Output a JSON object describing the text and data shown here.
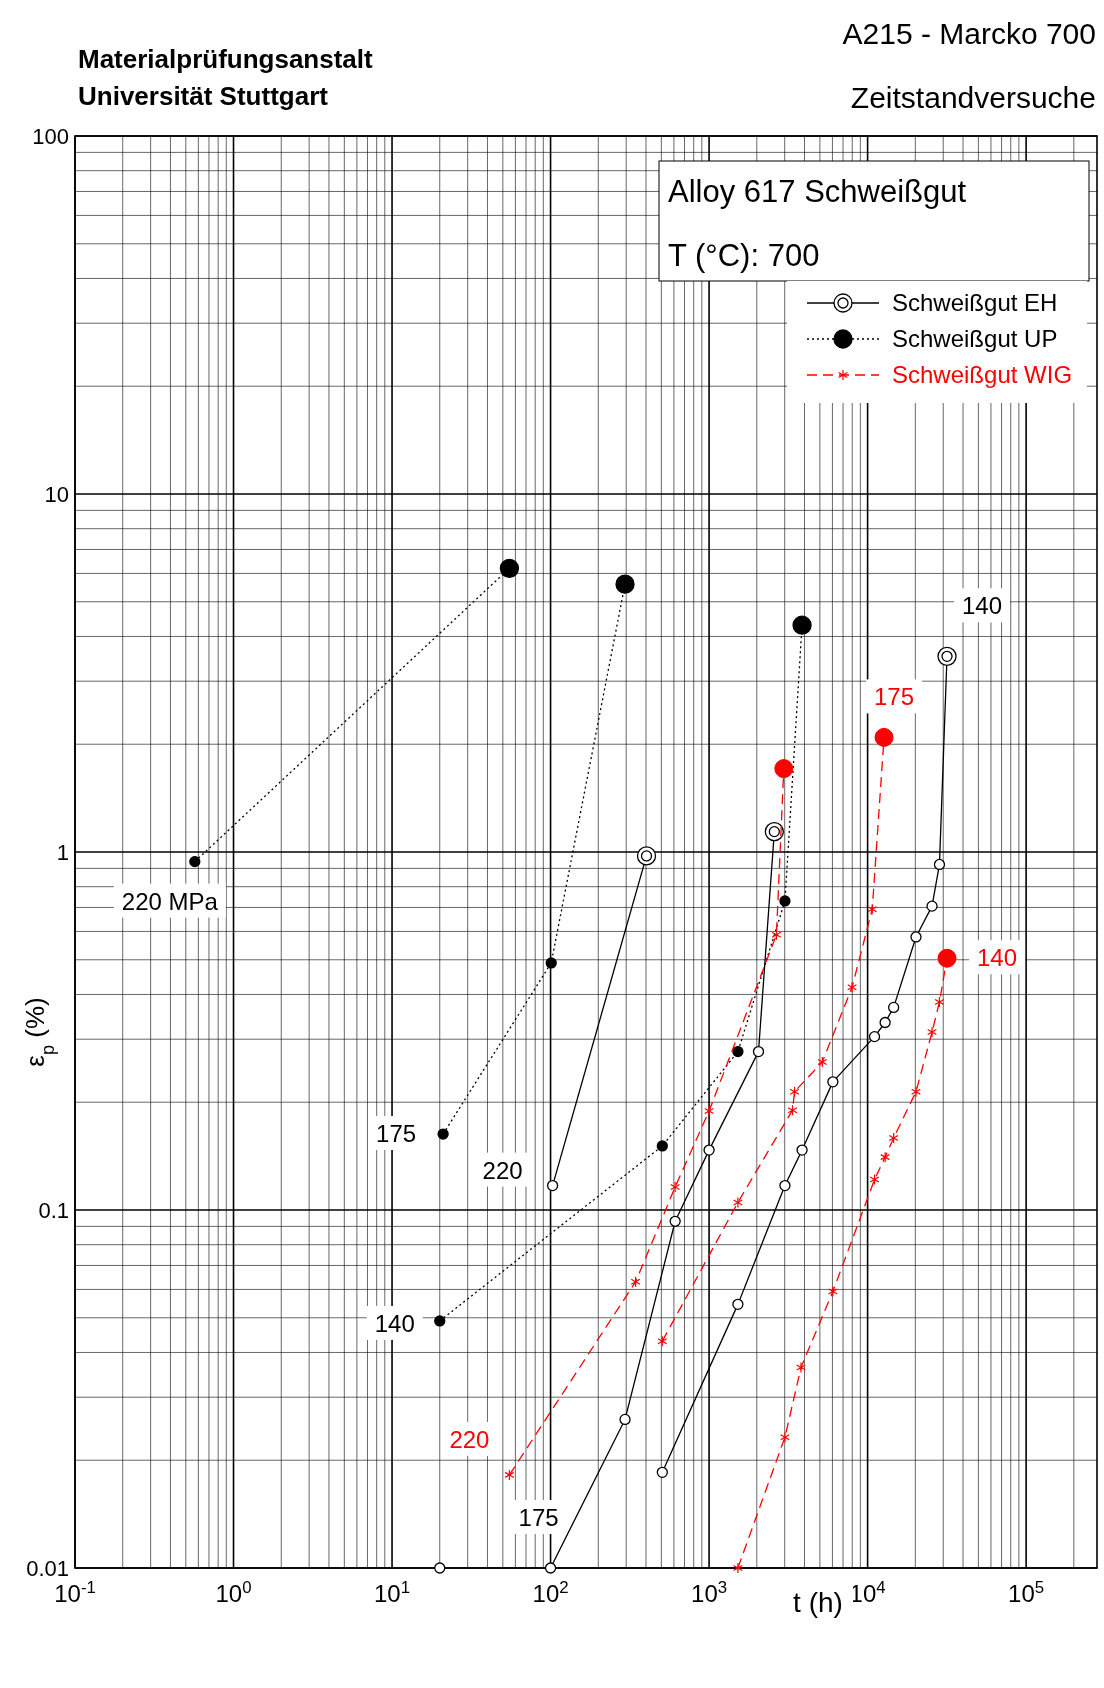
{
  "chart_data": {
    "type": "line",
    "title": "A215  -  Marcko 700",
    "subtitle": "Zeitstandversuche",
    "annotations": [
      "Materialprüfungsanstalt\nUniversität Stuttgart",
      "Alloy 617  Schweißgut",
      "T (°C):  700",
      "220 MPa",
      "175",
      "220",
      "140",
      "220",
      "175",
      "140",
      "175",
      "140"
    ],
    "xlabel": "t (h)",
    "ylabel": "ε$_{p}$ (%)",
    "xlim": [
      0.1,
      280000
    ],
    "ylim": [
      0.01,
      100
    ],
    "log": "xy",
    "grid": true,
    "legend": "top right",
    "xticks": [
      {
        "value": 0.1,
        "label": "10$^{-1}$"
      },
      {
        "value": 1,
        "label": "10$^{0}$"
      },
      {
        "value": 10,
        "label": "10$^{1}$"
      },
      {
        "value": 100,
        "label": "10$^{2}$"
      },
      {
        "value": 1000,
        "label": "10$^{3}$"
      },
      {
        "value": 10000,
        "label": "10$^{4}$"
      },
      {
        "value": 100000,
        "label": "10$^{5}$"
      }
    ],
    "yticks": [
      0.01,
      0.1,
      1,
      10,
      100
    ],
    "series": [
      {
        "name": "Schweißgut EH",
        "color": "#000000",
        "marker": "circle",
        "line_style": "solid",
        "x": [
          103,
          403
        ],
        "values": [
          0.117,
          0.975
        ]
      },
      {
        "color": "#000000",
        "marker": "circle",
        "line_style": "solid",
        "x": [
          100,
          295,
          611,
          1000,
          2050,
          2580
        ],
        "values": [
          0.01,
          0.026,
          0.093,
          0.147,
          0.277,
          1.14
        ]
      },
      {
        "color": "#000000",
        "marker": "circle",
        "line_style": "solid",
        "x": [
          20
        ],
        "values": [
          0.01
        ]
      },
      {
        "color": "#000000",
        "marker": "circle",
        "line_style": "solid",
        "x": [
          507,
          1520,
          3010,
          3860,
          6040,
          11060,
          12900,
          14600,
          20200,
          25500,
          28400,
          31700
        ],
        "values": [
          0.0185,
          0.0545,
          0.117,
          0.147,
          0.228,
          0.305,
          0.334,
          0.368,
          0.579,
          0.706,
          0.923,
          3.52
        ]
      },
      {
        "name": "Schweißgut UP",
        "color": "#000000",
        "marker": "circle",
        "line_style": "dotted",
        "x": [
          0.57,
          55
        ],
        "values": [
          0.94,
          6.2
        ]
      },
      {
        "color": "#000000",
        "marker": "circle",
        "line_style": "dotted",
        "x": [
          21,
          101,
          295
        ],
        "values": [
          0.163,
          0.49,
          5.6
        ]
      },
      {
        "color": "#000000",
        "marker": "circle",
        "line_style": "dotted",
        "x": [
          20,
          507,
          1520,
          3010,
          3860
        ],
        "values": [
          0.049,
          0.151,
          0.277,
          0.73,
          4.3
        ]
      },
      {
        "name": "Schweißgut WIG",
        "color": "#ff0000",
        "marker": "cross",
        "line_style": "dashed",
        "x": [
          55,
          344,
          611,
          1000,
          2660,
          2960
        ],
        "values": [
          0.0182,
          0.063,
          0.116,
          0.189,
          0.587,
          1.71
        ]
      },
      {
        "color": "#ff0000",
        "marker": "cross",
        "line_style": "dashed",
        "x": [
          507,
          1520,
          3360,
          3460,
          5180,
          7980,
          10700,
          12700
        ],
        "values": [
          0.043,
          0.105,
          0.19,
          0.214,
          0.259,
          0.419,
          0.692,
          2.09
        ]
      },
      {
        "color": "#ff0000",
        "marker": "cross",
        "line_style": "dashed",
        "x": [
          1520,
          3010,
          3800,
          6040,
          11060,
          12900,
          14600,
          20200,
          25500,
          28400,
          31700
        ],
        "values": [
          0.01,
          0.0232,
          0.0363,
          0.0592,
          0.1216,
          0.1405,
          0.159,
          0.214,
          0.314,
          0.381,
          0.505
        ]
      }
    ]
  }
}
